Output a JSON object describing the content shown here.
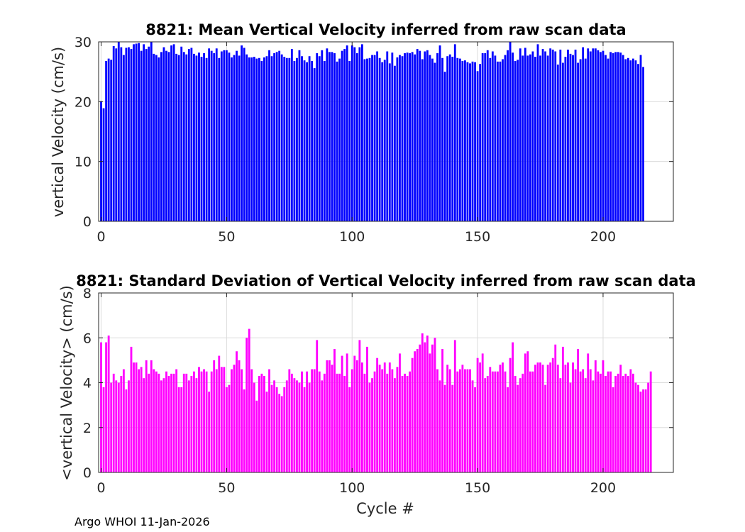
{
  "footer_text": "Argo WHOI 11-Jan-2026",
  "chart_data": [
    {
      "type": "bar",
      "title": "8821: Mean Vertical Velocity inferred from raw scan data",
      "xlabel": "",
      "ylabel": "vertical Velocity (cm/s)",
      "xlim": [
        -1,
        228
      ],
      "ylim": [
        0,
        30
      ],
      "xticks": [
        0,
        50,
        100,
        150,
        200
      ],
      "yticks": [
        0,
        10,
        20,
        30
      ],
      "grid": true,
      "color": "#0000ff",
      "cycle_start": 0,
      "values": [
        20.1,
        18.9,
        26.8,
        27.2,
        27.0,
        29.3,
        28.9,
        30.0,
        29.1,
        27.8,
        29.0,
        29.1,
        28.8,
        29.6,
        29.7,
        29.8,
        28.5,
        29.6,
        28.8,
        29.2,
        30.0,
        28.0,
        27.8,
        27.4,
        28.3,
        29.1,
        28.5,
        28.3,
        29.4,
        29.6,
        28.0,
        27.8,
        29.2,
        28.3,
        27.9,
        28.8,
        29.0,
        28.0,
        27.7,
        28.2,
        27.5,
        28.1,
        27.3,
        28.9,
        28.5,
        28.1,
        28.9,
        27.3,
        28.4,
        28.6,
        28.6,
        28.2,
        27.4,
        27.8,
        28.5,
        27.7,
        29.4,
        29.0,
        27.9,
        27.4,
        27.4,
        27.5,
        27.2,
        27.3,
        26.8,
        27.4,
        27.6,
        28.6,
        27.6,
        28.1,
        28.3,
        28.5,
        27.9,
        27.5,
        27.3,
        27.3,
        28.8,
        26.8,
        27.3,
        28.6,
        27.6,
        26.9,
        26.6,
        27.6,
        26.8,
        25.6,
        28.1,
        27.6,
        28.6,
        26.8,
        28.9,
        28.3,
        28.3,
        28.1,
        26.7,
        27.2,
        28.5,
        28.8,
        29.4,
        26.8,
        29.4,
        29.1,
        28.1,
        29.1,
        29.6,
        27.1,
        27.2,
        27.3,
        27.8,
        27.8,
        28.4,
        27.3,
        26.6,
        27.0,
        28.4,
        26.4,
        28.2,
        26.0,
        27.4,
        27.8,
        27.6,
        28.1,
        28.2,
        28.1,
        28.3,
        27.9,
        28.8,
        28.5,
        27.1,
        28.4,
        28.6,
        27.8,
        27.2,
        26.5,
        28.1,
        29.4,
        27.3,
        25.0,
        27.6,
        27.9,
        27.5,
        29.6,
        27.3,
        27.2,
        26.8,
        26.9,
        26.6,
        26.4,
        26.7,
        26.6,
        25.1,
        26.3,
        28.1,
        28.1,
        28.6,
        27.3,
        28.4,
        27.7,
        26.7,
        26.7,
        27.1,
        27.8,
        28.6,
        30.0,
        28.2,
        26.8,
        27.0,
        28.9,
        27.7,
        29.0,
        27.7,
        27.9,
        28.4,
        27.5,
        29.6,
        27.7,
        28.8,
        28.4,
        27.7,
        28.9,
        28.7,
        28.4,
        26.2,
        28.7,
        26.5,
        27.5,
        28.7,
        28.0,
        27.8,
        28.7,
        26.5,
        27.1,
        29.1,
        27.2,
        28.9,
        28.4,
        28.9,
        28.9,
        28.6,
        28.3,
        28.5,
        27.8,
        27.2,
        28.3,
        28.1,
        28.3,
        28.3,
        28.2,
        27.8,
        27.1,
        27.3,
        26.9,
        27.2,
        26.9,
        26.3,
        27.8,
        25.8
      ]
    },
    {
      "type": "bar",
      "title": "8821: Standard Deviation of Vertical Velocity inferred from raw scan data",
      "xlabel": "Cycle #",
      "ylabel": "<vertical Velocity> (cm/s)",
      "xlim": [
        -1,
        228
      ],
      "ylim": [
        0,
        8
      ],
      "xticks": [
        0,
        50,
        100,
        150,
        200
      ],
      "yticks": [
        0,
        2,
        4,
        6,
        8
      ],
      "grid": true,
      "color": "#ff00ff",
      "cycle_start": 0,
      "values": [
        5.8,
        3.8,
        5.8,
        6.1,
        4.0,
        4.4,
        4.1,
        4.0,
        4.3,
        4.6,
        3.7,
        4.1,
        5.6,
        4.9,
        4.9,
        4.6,
        4.7,
        4.2,
        5.0,
        4.4,
        5.0,
        4.6,
        4.5,
        4.4,
        4.1,
        4.2,
        4.5,
        4.3,
        4.4,
        4.4,
        4.6,
        3.8,
        3.8,
        4.4,
        4.4,
        4.1,
        4.3,
        4.5,
        4.2,
        4.7,
        4.5,
        4.6,
        4.5,
        3.6,
        4.5,
        5.0,
        4.6,
        5.2,
        4.7,
        4.7,
        3.8,
        3.9,
        4.6,
        4.8,
        5.4,
        5.0,
        4.6,
        3.7,
        6.0,
        6.4,
        4.6,
        4.0,
        3.2,
        4.3,
        4.4,
        4.3,
        3.6,
        4.6,
        3.9,
        4.1,
        3.8,
        3.5,
        3.4,
        3.8,
        4.1,
        4.6,
        4.4,
        4.2,
        4.1,
        4.0,
        4.5,
        3.8,
        4.5,
        4.0,
        4.6,
        4.6,
        5.9,
        4.5,
        4.1,
        4.4,
        5.0,
        5.0,
        4.8,
        5.5,
        4.4,
        4.4,
        5.2,
        4.3,
        5.3,
        3.8,
        4.6,
        5.2,
        5.0,
        5.9,
        4.9,
        4.4,
        5.6,
        4.0,
        4.2,
        4.5,
        5.1,
        4.8,
        4.6,
        4.9,
        4.4,
        4.9,
        4.6,
        4.2,
        4.7,
        5.3,
        4.3,
        4.4,
        4.3,
        4.5,
        5.1,
        5.4,
        5.5,
        5.7,
        6.2,
        5.8,
        6.1,
        5.3,
        5.7,
        6.0,
        4.6,
        4.1,
        5.5,
        3.9,
        4.8,
        4.6,
        3.9,
        5.9,
        4.5,
        4.6,
        4.8,
        4.6,
        4.6,
        4.6,
        4.1,
        3.8,
        5.1,
        4.9,
        5.3,
        4.2,
        4.3,
        4.7,
        4.5,
        4.5,
        4.5,
        4.8,
        4.9,
        4.5,
        3.8,
        5.1,
        5.8,
        4.3,
        3.9,
        4.2,
        4.4,
        5.3,
        5.4,
        4.5,
        4.5,
        4.8,
        4.9,
        4.9,
        4.8,
        3.9,
        4.8,
        4.9,
        5.1,
        5.7,
        4.8,
        4.2,
        5.6,
        4.8,
        4.9,
        4.0,
        4.9,
        4.6,
        5.5,
        4.5,
        4.6,
        4.2,
        5.3,
        4.6,
        4.1,
        5.0,
        4.5,
        4.4,
        5.0,
        4.3,
        4.5,
        4.5,
        3.8,
        4.3,
        4.4,
        4.8,
        4.3,
        4.4,
        4.3,
        4.6,
        4.4,
        4.0,
        3.9,
        3.6,
        3.7,
        3.7,
        4.0,
        4.5
      ]
    }
  ]
}
